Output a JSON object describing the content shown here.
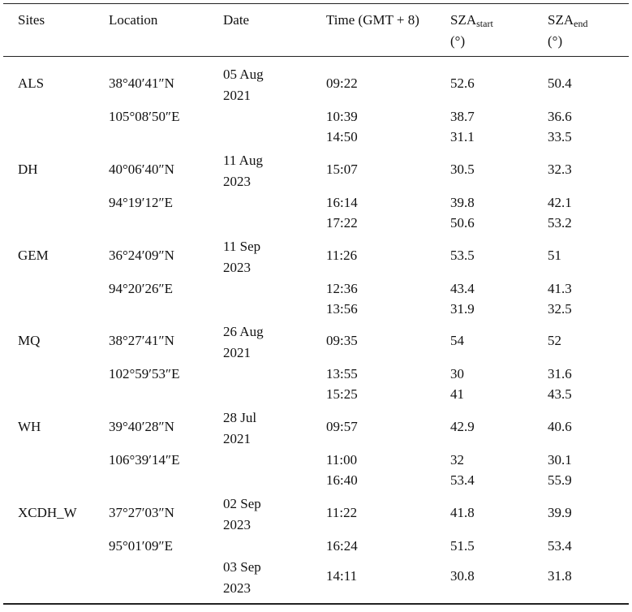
{
  "header": {
    "columns": [
      "Sites",
      "Location",
      "Date",
      "Time (GMT + 8)",
      {
        "main": "SZA",
        "sub": "start",
        "unit": "(°)"
      },
      {
        "main": "SZA",
        "sub": "end",
        "unit": "(°)"
      }
    ]
  },
  "table": {
    "groups": [
      {
        "site": "ALS",
        "location": [
          "38°40′41″N",
          "105°08′50″E"
        ],
        "rows": [
          {
            "date": "05 Aug 2021",
            "time": "09:22",
            "sza_start": 52.6,
            "sza_end": 50.4
          },
          {
            "time": "10:39",
            "sza_start": 38.7,
            "sza_end": 36.6
          },
          {
            "time": "14:50",
            "sza_start": 31.1,
            "sza_end": 33.5
          }
        ]
      },
      {
        "site": "DH",
        "location": [
          "40°06′40″N",
          "94°19′12″E"
        ],
        "rows": [
          {
            "date": "11 Aug 2023",
            "time": "15:07",
            "sza_start": 30.5,
            "sza_end": 32.3
          },
          {
            "time": "16:14",
            "sza_start": 39.8,
            "sza_end": 42.1
          },
          {
            "time": "17:22",
            "sza_start": 50.6,
            "sza_end": 53.2
          }
        ]
      },
      {
        "site": "GEM",
        "location": [
          "36°24′09″N",
          "94°20′26″E"
        ],
        "rows": [
          {
            "date": "11 Sep 2023",
            "time": "11:26",
            "sza_start": 53.5,
            "sza_end": 51
          },
          {
            "time": "12:36",
            "sza_start": 43.4,
            "sza_end": 41.3
          },
          {
            "time": "13:56",
            "sza_start": 31.9,
            "sza_end": 32.5
          }
        ]
      },
      {
        "site": "MQ",
        "location": [
          "38°27′41″N",
          "102°59′53″E"
        ],
        "rows": [
          {
            "date": "26 Aug 2021",
            "time": "09:35",
            "sza_start": 54,
            "sza_end": 52
          },
          {
            "time": "13:55",
            "sza_start": 30,
            "sza_end": 31.6
          },
          {
            "time": "15:25",
            "sza_start": 41,
            "sza_end": 43.5
          }
        ]
      },
      {
        "site": "WH",
        "location": [
          "39°40′28″N",
          "106°39′14″E"
        ],
        "rows": [
          {
            "date": "28 Jul 2021",
            "time": "09:57",
            "sza_start": 42.9,
            "sza_end": 40.6
          },
          {
            "time": "11:00",
            "sza_start": 32,
            "sza_end": 30.1
          },
          {
            "time": "16:40",
            "sza_start": 53.4,
            "sza_end": 55.9
          }
        ]
      },
      {
        "site": "XCDH_W",
        "location": [
          "37°27′03″N",
          "95°01′09″E"
        ],
        "rows": [
          {
            "date": "02 Sep 2023",
            "time": "11:22",
            "sza_start": 41.8,
            "sza_end": 39.9
          },
          {
            "time": "16:24",
            "sza_start": 51.5,
            "sza_end": 53.4
          },
          {
            "date": "03 Sep 2023",
            "time": "14:11",
            "sza_start": 30.8,
            "sza_end": 31.8
          }
        ]
      }
    ]
  }
}
